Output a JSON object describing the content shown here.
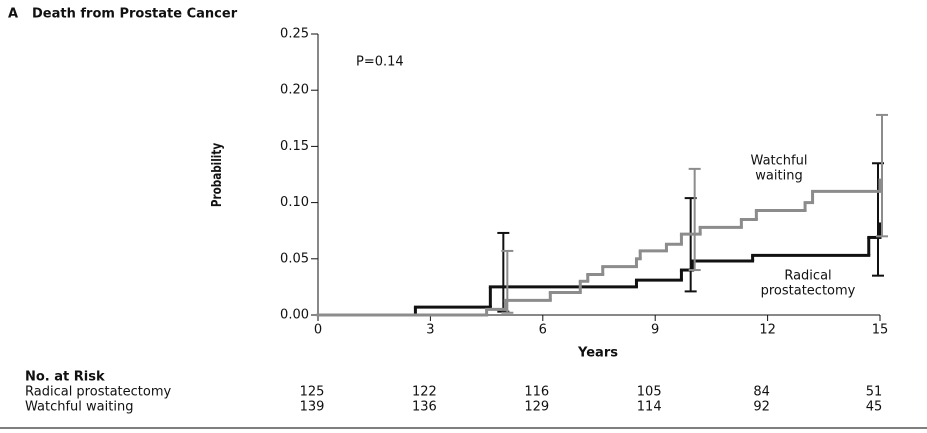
{
  "chart_data": {
    "type": "step",
    "panel": "A",
    "title": "Death from Prostate Cancer",
    "annotation": "P=0.14",
    "x_label": "Years",
    "y_label": "Probability",
    "xlim": [
      0,
      15
    ],
    "ylim": [
      0,
      0.25
    ],
    "xticks": [
      0,
      3,
      6,
      9,
      12,
      15
    ],
    "yticks": [
      {
        "value": 0,
        "label": "0.00"
      },
      0.05,
      {
        "value": 0.1,
        "label": "0.10"
      },
      0.15,
      {
        "value": 0.2,
        "label": "0.20"
      },
      0.25
    ],
    "series": [
      {
        "name": "Radical prostatectomy",
        "label_lines": [
          "Radical",
          "prostatectomy"
        ],
        "color": "#111111",
        "x": [
          0,
          2.6,
          4.6,
          8.5,
          9.7,
          10,
          11.6,
          14.7,
          15
        ],
        "values": [
          0,
          0.007,
          0.025,
          0.031,
          0.04,
          0.048,
          0.053,
          0.069,
          0.081
        ],
        "ci_x": [
          5,
          10,
          15
        ],
        "ci_low": [
          0.003,
          0.021,
          0.035
        ],
        "ci_high": [
          0.073,
          0.104,
          0.135
        ]
      },
      {
        "name": "Watchful waiting",
        "label_lines": [
          "Watchful",
          "waiting"
        ],
        "color": "#8c8c8c",
        "x": [
          0,
          4.5,
          5,
          6.2,
          7,
          7.2,
          7.6,
          8.5,
          8.6,
          9.3,
          9.7,
          10.2,
          11.3,
          11.7,
          13,
          13.2,
          15
        ],
        "values": [
          0,
          0.005,
          0.013,
          0.02,
          0.03,
          0.036,
          0.043,
          0.05,
          0.057,
          0.063,
          0.072,
          0.078,
          0.085,
          0.093,
          0.1,
          0.11,
          0.12
        ],
        "ci_x": [
          5,
          10,
          15
        ],
        "ci_low": [
          0.002,
          0.04,
          0.07
        ],
        "ci_high": [
          0.057,
          0.13,
          0.178
        ]
      }
    ],
    "at_risk": {
      "title": "No. at Risk",
      "rows": [
        {
          "name": "Radical prostatectomy",
          "values": [
            125,
            122,
            116,
            105,
            84,
            51
          ]
        },
        {
          "name": "Watchful waiting",
          "values": [
            139,
            136,
            129,
            114,
            92,
            45
          ]
        }
      ]
    }
  }
}
